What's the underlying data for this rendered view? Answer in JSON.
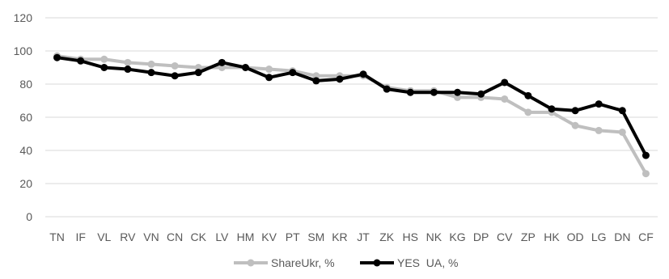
{
  "chart_data": {
    "type": "line",
    "categories": [
      "TN",
      "IF",
      "VL",
      "RV",
      "VN",
      "CN",
      "CK",
      "LV",
      "HM",
      "KV",
      "PT",
      "SM",
      "KR",
      "JT",
      "ZK",
      "HS",
      "NK",
      "KG",
      "DP",
      "CV",
      "ZP",
      "HK",
      "OD",
      "LG",
      "DN",
      "CF"
    ],
    "series": [
      {
        "name": "ShareUkr, %",
        "color": "#bfbfbf",
        "values": [
          97,
          95,
          95,
          93,
          92,
          91,
          90,
          90,
          90,
          89,
          88,
          85,
          85,
          85,
          78,
          76,
          76,
          72,
          72,
          71,
          63,
          63,
          55,
          52,
          51,
          26
        ]
      },
      {
        "name": "YES  UA, %",
        "color": "#000000",
        "values": [
          96,
          94,
          90,
          89,
          87,
          85,
          87,
          93,
          90,
          84,
          87,
          82,
          83,
          86,
          77,
          75,
          75,
          75,
          74,
          81,
          73,
          65,
          64,
          68,
          64,
          37
        ]
      }
    ],
    "ylim": [
      0,
      120
    ],
    "yticks": [
      0,
      20,
      40,
      60,
      80,
      100,
      120
    ],
    "grid": true,
    "legend": "bottom"
  }
}
